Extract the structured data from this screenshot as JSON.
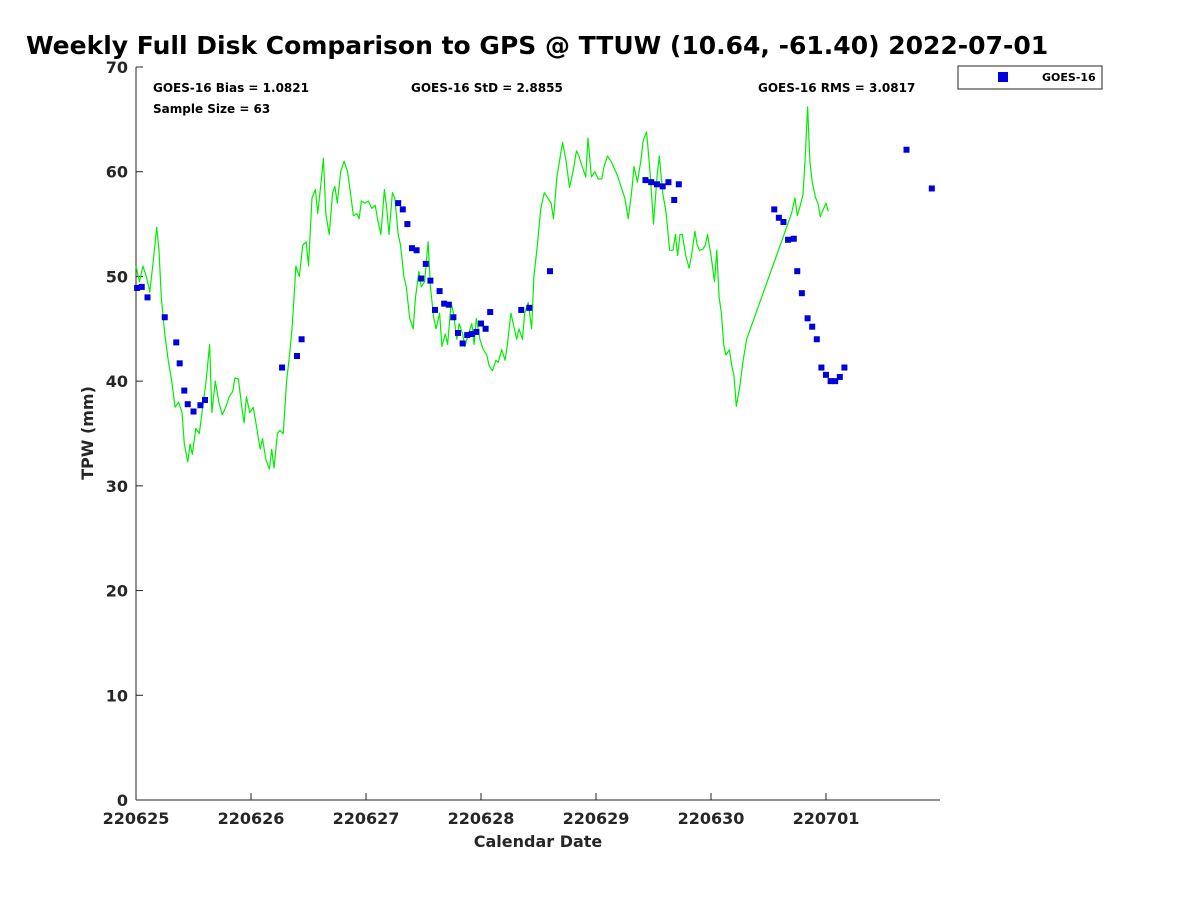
{
  "chart_data": {
    "type": "scatter",
    "title": "Weekly Full Disk Comparison to GPS @ TTUW (10.64, -61.40) 2022-07-01",
    "xlabel": "Calendar Date",
    "ylabel": "TPW (mm)",
    "xlim": [
      0,
      7
    ],
    "ylim": [
      0,
      70
    ],
    "yticks": [
      0,
      10,
      20,
      30,
      40,
      50,
      60,
      70
    ],
    "xticks": [
      {
        "value": 0,
        "label": "220625"
      },
      {
        "value": 1,
        "label": "220626"
      },
      {
        "value": 2,
        "label": "220627"
      },
      {
        "value": 3,
        "label": "220628"
      },
      {
        "value": 4,
        "label": "220629"
      },
      {
        "value": 5,
        "label": "220630"
      },
      {
        "value": 6,
        "label": "220701"
      }
    ],
    "stats": {
      "bias": "GOES-16 Bias = 1.0821",
      "sample": "Sample Size = 63",
      "std": "GOES-16 StD = 2.8855",
      "rms": "GOES-16 RMS = 3.0817"
    },
    "legend": {
      "position": "outside-top-right",
      "label": "GOES-16"
    },
    "series": [
      {
        "name": "GPS",
        "kind": "line",
        "color": "#00ee00",
        "points": [
          [
            0.0,
            51.0
          ],
          [
            0.03,
            49.5
          ],
          [
            0.06,
            51.0
          ],
          [
            0.09,
            50.0
          ],
          [
            0.12,
            48.5
          ],
          [
            0.15,
            51.5
          ],
          [
            0.18,
            54.7
          ],
          [
            0.2,
            52.5
          ],
          [
            0.22,
            48.0
          ],
          [
            0.25,
            44.5
          ],
          [
            0.28,
            42.0
          ],
          [
            0.31,
            40.0
          ],
          [
            0.34,
            37.5
          ],
          [
            0.37,
            38.0
          ],
          [
            0.4,
            37.0
          ],
          [
            0.42,
            34.0
          ],
          [
            0.45,
            32.3
          ],
          [
            0.47,
            34.0
          ],
          [
            0.49,
            33.0
          ],
          [
            0.52,
            35.5
          ],
          [
            0.55,
            35.0
          ],
          [
            0.58,
            37.5
          ],
          [
            0.61,
            40.0
          ],
          [
            0.64,
            43.5
          ],
          [
            0.66,
            37.0
          ],
          [
            0.69,
            40.0
          ],
          [
            0.72,
            38.0
          ],
          [
            0.75,
            36.8
          ],
          [
            0.78,
            37.5
          ],
          [
            0.81,
            38.5
          ],
          [
            0.84,
            39.0
          ],
          [
            0.86,
            40.3
          ],
          [
            0.89,
            40.2
          ],
          [
            0.92,
            37.5
          ],
          [
            0.94,
            36.0
          ],
          [
            0.96,
            38.5
          ],
          [
            0.99,
            37.0
          ],
          [
            1.02,
            37.5
          ],
          [
            1.05,
            35.5
          ],
          [
            1.08,
            33.5
          ],
          [
            1.1,
            34.5
          ],
          [
            1.13,
            32.5
          ],
          [
            1.16,
            31.6
          ],
          [
            1.18,
            33.5
          ],
          [
            1.2,
            31.7
          ],
          [
            1.23,
            35.0
          ],
          [
            1.25,
            35.3
          ],
          [
            1.28,
            35.0
          ],
          [
            1.31,
            40.0
          ],
          [
            1.34,
            43.0
          ],
          [
            1.36,
            45.5
          ],
          [
            1.39,
            51.0
          ],
          [
            1.42,
            50.0
          ],
          [
            1.45,
            53.0
          ],
          [
            1.48,
            53.3
          ],
          [
            1.5,
            51.0
          ],
          [
            1.53,
            57.5
          ],
          [
            1.56,
            58.3
          ],
          [
            1.58,
            56.0
          ],
          [
            1.61,
            59.0
          ],
          [
            1.63,
            61.3
          ],
          [
            1.65,
            56.0
          ],
          [
            1.68,
            54.0
          ],
          [
            1.71,
            58.0
          ],
          [
            1.73,
            58.6
          ],
          [
            1.75,
            57.0
          ],
          [
            1.78,
            60.0
          ],
          [
            1.81,
            61.0
          ],
          [
            1.84,
            60.0
          ],
          [
            1.87,
            57.5
          ],
          [
            1.89,
            55.8
          ],
          [
            1.92,
            56.0
          ],
          [
            1.94,
            55.5
          ],
          [
            1.96,
            57.2
          ],
          [
            1.99,
            57.0
          ],
          [
            2.02,
            57.2
          ],
          [
            2.05,
            56.5
          ],
          [
            2.08,
            56.8
          ],
          [
            2.1,
            55.5
          ],
          [
            2.13,
            54.0
          ],
          [
            2.16,
            58.3
          ],
          [
            2.18,
            56.5
          ],
          [
            2.2,
            54.0
          ],
          [
            2.23,
            58.0
          ],
          [
            2.25,
            57.5
          ],
          [
            2.28,
            54.0
          ],
          [
            2.3,
            53.0
          ],
          [
            2.33,
            50.0
          ],
          [
            2.35,
            49.0
          ],
          [
            2.38,
            46.0
          ],
          [
            2.41,
            45.0
          ],
          [
            2.43,
            48.0
          ],
          [
            2.46,
            50.5
          ],
          [
            2.48,
            49.0
          ],
          [
            2.51,
            49.5
          ],
          [
            2.54,
            53.3
          ],
          [
            2.56,
            49.0
          ],
          [
            2.59,
            46.0
          ],
          [
            2.61,
            45.0
          ],
          [
            2.64,
            46.5
          ],
          [
            2.66,
            43.3
          ],
          [
            2.69,
            44.5
          ],
          [
            2.71,
            43.5
          ],
          [
            2.74,
            47.5
          ],
          [
            2.76,
            46.5
          ],
          [
            2.79,
            44.0
          ],
          [
            2.81,
            45.5
          ],
          [
            2.84,
            44.5
          ],
          [
            2.86,
            43.3
          ],
          [
            2.89,
            44.5
          ],
          [
            2.92,
            45.5
          ],
          [
            2.94,
            43.5
          ],
          [
            2.96,
            46.0
          ],
          [
            2.99,
            44.0
          ],
          [
            3.02,
            43.0
          ],
          [
            3.05,
            42.5
          ],
          [
            3.07,
            41.5
          ],
          [
            3.1,
            41.0
          ],
          [
            3.13,
            42.0
          ],
          [
            3.15,
            41.8
          ],
          [
            3.18,
            43.0
          ],
          [
            3.21,
            42.0
          ],
          [
            3.23,
            43.5
          ],
          [
            3.26,
            46.5
          ],
          [
            3.28,
            45.5
          ],
          [
            3.31,
            44.0
          ],
          [
            3.33,
            45.0
          ],
          [
            3.36,
            44.0
          ],
          [
            3.38,
            46.5
          ],
          [
            3.41,
            47.5
          ],
          [
            3.44,
            45.0
          ],
          [
            3.46,
            50.0
          ],
          [
            3.49,
            53.0
          ],
          [
            3.52,
            56.5
          ],
          [
            3.55,
            58.0
          ],
          [
            3.58,
            57.5
          ],
          [
            3.61,
            57.0
          ],
          [
            3.63,
            55.5
          ],
          [
            3.66,
            59.5
          ],
          [
            3.69,
            61.5
          ],
          [
            3.71,
            62.8
          ],
          [
            3.74,
            61.0
          ],
          [
            3.77,
            58.5
          ],
          [
            3.8,
            60.0
          ],
          [
            3.83,
            62.0
          ],
          [
            3.85,
            61.5
          ],
          [
            3.88,
            60.5
          ],
          [
            3.91,
            59.5
          ],
          [
            3.93,
            63.2
          ],
          [
            3.96,
            59.5
          ],
          [
            3.99,
            60.0
          ],
          [
            4.02,
            59.3
          ],
          [
            4.05,
            59.3
          ],
          [
            4.07,
            60.5
          ],
          [
            4.1,
            61.5
          ],
          [
            4.13,
            61.0
          ],
          [
            4.16,
            60.3
          ],
          [
            4.19,
            59.5
          ],
          [
            4.22,
            58.5
          ],
          [
            4.25,
            57.5
          ],
          [
            4.28,
            55.5
          ],
          [
            4.31,
            58.0
          ],
          [
            4.33,
            60.5
          ],
          [
            4.36,
            59.0
          ],
          [
            4.39,
            61.0
          ],
          [
            4.41,
            63.0
          ],
          [
            4.44,
            63.8
          ],
          [
            4.47,
            60.0
          ],
          [
            4.5,
            55.0
          ],
          [
            4.53,
            59.5
          ],
          [
            4.55,
            61.5
          ],
          [
            4.58,
            58.0
          ],
          [
            4.61,
            56.0
          ],
          [
            4.64,
            52.5
          ],
          [
            4.67,
            52.5
          ],
          [
            4.69,
            54.0
          ],
          [
            4.71,
            52.0
          ],
          [
            4.73,
            54.0
          ],
          [
            4.75,
            54.0
          ],
          [
            4.78,
            52.0
          ],
          [
            4.81,
            50.8
          ],
          [
            4.83,
            52.0
          ],
          [
            4.86,
            54.3
          ],
          [
            4.88,
            53.0
          ],
          [
            4.9,
            52.5
          ],
          [
            4.93,
            52.6
          ],
          [
            4.95,
            53.0
          ],
          [
            4.97,
            54.0
          ],
          [
            5.0,
            52.0
          ],
          [
            5.03,
            49.5
          ],
          [
            5.05,
            52.5
          ],
          [
            5.07,
            48.0
          ],
          [
            5.09,
            46.5
          ],
          [
            5.11,
            43.5
          ],
          [
            5.13,
            42.5
          ],
          [
            5.16,
            43.0
          ],
          [
            5.18,
            41.5
          ],
          [
            5.2,
            40.5
          ],
          [
            5.22,
            37.6
          ],
          [
            5.25,
            39.5
          ],
          [
            5.28,
            42.0
          ],
          [
            5.31,
            44.0
          ],
          [
            5.7,
            56.0
          ],
          [
            5.73,
            57.5
          ],
          [
            5.75,
            55.8
          ],
          [
            5.77,
            56.5
          ],
          [
            5.8,
            57.8
          ],
          [
            5.82,
            61.5
          ],
          [
            5.84,
            66.2
          ],
          [
            5.86,
            61.0
          ],
          [
            5.88,
            59.0
          ],
          [
            5.91,
            57.5
          ],
          [
            5.93,
            57.0
          ],
          [
            5.95,
            55.7
          ],
          [
            5.98,
            56.5
          ],
          [
            6.0,
            57.0
          ],
          [
            6.02,
            56.2
          ]
        ]
      },
      {
        "name": "GOES-16",
        "kind": "scatter",
        "color": "#0000dd",
        "points": [
          [
            0.01,
            48.9
          ],
          [
            0.05,
            49.0
          ],
          [
            0.1,
            48.0
          ],
          [
            0.25,
            46.1
          ],
          [
            0.35,
            43.7
          ],
          [
            0.38,
            41.7
          ],
          [
            0.42,
            39.1
          ],
          [
            0.45,
            37.8
          ],
          [
            0.5,
            37.1
          ],
          [
            0.56,
            37.7
          ],
          [
            0.6,
            38.2
          ],
          [
            1.27,
            41.3
          ],
          [
            1.4,
            42.4
          ],
          [
            1.44,
            44.0
          ],
          [
            2.28,
            57.0
          ],
          [
            2.32,
            56.4
          ],
          [
            2.36,
            55.0
          ],
          [
            2.4,
            52.7
          ],
          [
            2.44,
            52.5
          ],
          [
            2.48,
            49.8
          ],
          [
            2.52,
            51.2
          ],
          [
            2.56,
            49.6
          ],
          [
            2.6,
            46.8
          ],
          [
            2.64,
            48.6
          ],
          [
            2.68,
            47.4
          ],
          [
            2.72,
            47.3
          ],
          [
            2.76,
            46.1
          ],
          [
            2.8,
            44.6
          ],
          [
            2.84,
            43.6
          ],
          [
            2.88,
            44.4
          ],
          [
            2.92,
            44.5
          ],
          [
            2.96,
            44.7
          ],
          [
            3.0,
            45.5
          ],
          [
            3.04,
            45.0
          ],
          [
            3.08,
            46.6
          ],
          [
            3.35,
            46.8
          ],
          [
            3.42,
            47.0
          ],
          [
            3.6,
            50.5
          ],
          [
            4.43,
            59.2
          ],
          [
            4.48,
            59.0
          ],
          [
            4.53,
            58.8
          ],
          [
            4.58,
            58.6
          ],
          [
            4.63,
            59.0
          ],
          [
            4.68,
            57.3
          ],
          [
            4.72,
            58.8
          ],
          [
            5.55,
            56.4
          ],
          [
            5.59,
            55.6
          ],
          [
            5.63,
            55.2
          ],
          [
            5.67,
            53.5
          ],
          [
            5.72,
            53.6
          ],
          [
            5.75,
            50.5
          ],
          [
            5.79,
            48.4
          ],
          [
            5.84,
            46.0
          ],
          [
            5.88,
            45.2
          ],
          [
            5.92,
            44.0
          ],
          [
            5.96,
            41.3
          ],
          [
            6.0,
            40.6
          ],
          [
            6.04,
            40.0
          ],
          [
            6.08,
            40.0
          ],
          [
            6.12,
            40.4
          ],
          [
            6.16,
            41.3
          ],
          [
            6.7,
            62.1
          ],
          [
            6.92,
            58.4
          ]
        ]
      }
    ]
  }
}
